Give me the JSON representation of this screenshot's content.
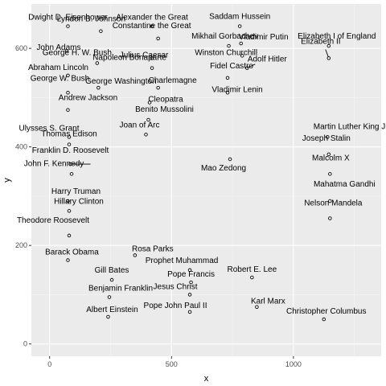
{
  "chart_data": {
    "type": "scatter",
    "xlabel": "x",
    "ylabel": "y",
    "xlim": [
      -75,
      1360
    ],
    "ylim": [
      -25,
      690
    ],
    "xticks": [
      0,
      500,
      1000
    ],
    "yticks": [
      0,
      200,
      400,
      600
    ],
    "grid": true,
    "points": [
      {
        "label": "Dwight D. Eisenhower",
        "x": 75,
        "y": 645
      },
      {
        "label": "Alexander the Great",
        "x": 420,
        "y": 645
      },
      {
        "label": "Saddam Hussein",
        "x": 780,
        "y": 645
      },
      {
        "label": "Constantine the Great",
        "x": 445,
        "y": 620
      },
      {
        "label": "Lyndon B. Johnson",
        "x": 210,
        "y": 635
      },
      {
        "label": "Vladimir Putin",
        "x": 785,
        "y": 610
      },
      {
        "label": "Mikhail Gorbachev",
        "x": 735,
        "y": 605
      },
      {
        "label": "Elizabeth I of England",
        "x": 1145,
        "y": 605
      },
      {
        "label": "John Adams",
        "x": 70,
        "y": 595
      },
      {
        "label": "Julius Caesar",
        "x": 420,
        "y": 580
      },
      {
        "label": "George H. W. Bush",
        "x": 195,
        "y": 570
      },
      {
        "label": "Winston Churchill",
        "x": 790,
        "y": 585
      },
      {
        "label": "Elizabeth II",
        "x": 1145,
        "y": 580
      },
      {
        "label": "Napoleon Bonaparte",
        "x": 420,
        "y": 560
      },
      {
        "label": "Adolf Hitler",
        "x": 810,
        "y": 560
      },
      {
        "label": "Abraham Lincoln",
        "x": 75,
        "y": 545
      },
      {
        "label": "Charlemagne",
        "x": 445,
        "y": 520
      },
      {
        "label": "George Washington",
        "x": 200,
        "y": 520
      },
      {
        "label": "Fidel Castro",
        "x": 730,
        "y": 540
      },
      {
        "label": "Vladimir Lenin",
        "x": 730,
        "y": 510
      },
      {
        "label": "George W. Bush",
        "x": 75,
        "y": 510
      },
      {
        "label": "Cleopatra",
        "x": 410,
        "y": 490
      },
      {
        "label": "Andrew Jackson",
        "x": 75,
        "y": 475
      },
      {
        "label": "Benito Mussolini",
        "x": 405,
        "y": 455
      },
      {
        "label": "Martin Luther King Jr.",
        "x": 1140,
        "y": 420
      },
      {
        "label": "Ulysses S. Grant",
        "x": 80,
        "y": 420
      },
      {
        "label": "Joan of Arc",
        "x": 395,
        "y": 425
      },
      {
        "label": "Thomas Edison",
        "x": 80,
        "y": 405
      },
      {
        "label": "Joseph Stalin",
        "x": 1145,
        "y": 385
      },
      {
        "label": "Franklin D. Roosevelt",
        "x": 85,
        "y": 365
      },
      {
        "label": "Mao Zedong",
        "x": 740,
        "y": 375
      },
      {
        "label": "John F. Kennedy",
        "x": 90,
        "y": 345
      },
      {
        "label": "Malcolm X",
        "x": 1150,
        "y": 345
      },
      {
        "label": "Harry Truman",
        "x": 75,
        "y": 290
      },
      {
        "label": "Mahatma Gandhi",
        "x": 1150,
        "y": 290
      },
      {
        "label": "Hillary Clinton",
        "x": 80,
        "y": 270
      },
      {
        "label": "Nelson Mandela",
        "x": 1150,
        "y": 255
      },
      {
        "label": "Theodore Roosevelt",
        "x": 80,
        "y": 220
      },
      {
        "label": "Rosa Parks",
        "x": 350,
        "y": 180
      },
      {
        "label": "Prophet Muhammad",
        "x": 575,
        "y": 150
      },
      {
        "label": "Barack Obama",
        "x": 75,
        "y": 170
      },
      {
        "label": "Gill Bates",
        "x": 255,
        "y": 130
      },
      {
        "label": "Robert E. Lee",
        "x": 830,
        "y": 135
      },
      {
        "label": "Pope Francis",
        "x": 580,
        "y": 125
      },
      {
        "label": "Benjamin Franklin",
        "x": 245,
        "y": 95
      },
      {
        "label": "Jesus Christ",
        "x": 575,
        "y": 100
      },
      {
        "label": "Karl Marx",
        "x": 850,
        "y": 75
      },
      {
        "label": "Albert Einstein",
        "x": 240,
        "y": 55
      },
      {
        "label": "Pope John Paul II",
        "x": 575,
        "y": 65
      },
      {
        "label": "Christopher Columbus",
        "x": 1125,
        "y": 50
      }
    ]
  }
}
